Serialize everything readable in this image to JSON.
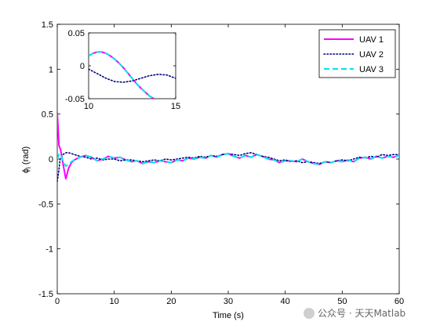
{
  "chart_data": {
    "type": "line",
    "title": "",
    "xlabel": "Time (s)",
    "ylabel": "ϕ_i (rad)",
    "ylabel_base": "ϕ",
    "ylabel_sub": "i",
    "ylabel_unit": " (rad)",
    "xlim": [
      0,
      60
    ],
    "ylim": [
      -1.5,
      1.5
    ],
    "xticks": [
      0,
      10,
      20,
      30,
      40,
      50,
      60
    ],
    "yticks": [
      -1.5,
      -1,
      -0.5,
      0,
      0.5,
      1,
      1.5
    ],
    "xtick_labels": [
      "0",
      "10",
      "20",
      "30",
      "40",
      "50",
      "60"
    ],
    "ytick_labels": [
      "-1.5",
      "-1",
      "-0.5",
      "0",
      "0.5",
      "1",
      "1.5"
    ],
    "grid": false,
    "legend_position": "top-right",
    "series": [
      {
        "name": "UAV 1",
        "color": "#ff00ff",
        "style": "solid",
        "x": [
          0,
          0.3,
          0.6,
          1,
          1.5,
          2,
          2.5,
          3,
          4,
          5,
          6,
          7,
          8,
          9,
          10,
          11,
          12,
          13,
          14,
          15,
          16,
          17,
          18,
          19,
          20,
          21,
          22,
          23,
          24,
          25,
          26,
          27,
          28,
          29,
          30,
          31,
          32,
          33,
          34,
          35,
          36,
          37,
          38,
          39,
          40,
          41,
          42,
          43,
          44,
          45,
          46,
          47,
          48,
          49,
          50,
          51,
          52,
          53,
          54,
          55,
          56,
          57,
          58,
          59,
          60
        ],
        "y": [
          0.52,
          0.15,
          0.1,
          -0.05,
          -0.22,
          -0.1,
          -0.04,
          -0.01,
          0.02,
          0.04,
          0.02,
          -0.02,
          0.0,
          0.03,
          0.01,
          0.02,
          -0.01,
          -0.03,
          -0.02,
          -0.05,
          -0.03,
          -0.04,
          -0.02,
          -0.03,
          -0.04,
          -0.01,
          -0.02,
          0.01,
          0.0,
          0.02,
          0.01,
          0.04,
          0.02,
          0.05,
          0.06,
          0.03,
          0.01,
          0.04,
          0.02,
          0.05,
          0.03,
          0.0,
          -0.01,
          -0.04,
          -0.02,
          -0.02,
          -0.03,
          0.0,
          -0.03,
          -0.05,
          -0.06,
          -0.03,
          -0.04,
          -0.02,
          -0.03,
          -0.01,
          -0.03,
          0.01,
          0.02,
          0.0,
          0.03,
          0.01,
          0.03,
          0.02,
          0.04
        ]
      },
      {
        "name": "UAV 2",
        "color": "#00007f",
        "style": "dotted",
        "x": [
          0,
          0.3,
          0.5,
          1,
          1.5,
          2,
          3,
          4,
          5,
          6,
          7,
          8,
          9,
          10,
          11,
          12,
          13,
          14,
          15,
          16,
          17,
          18,
          19,
          20,
          21,
          22,
          23,
          24,
          25,
          26,
          27,
          28,
          29,
          30,
          31,
          32,
          33,
          34,
          35,
          36,
          37,
          38,
          39,
          40,
          41,
          42,
          43,
          44,
          45,
          46,
          47,
          48,
          49,
          50,
          51,
          52,
          53,
          54,
          55,
          56,
          57,
          58,
          59,
          60
        ],
        "y": [
          -0.25,
          -0.12,
          0.0,
          0.05,
          0.07,
          0.07,
          0.05,
          0.03,
          0.02,
          0.0,
          0.01,
          -0.01,
          0.0,
          0.0,
          -0.02,
          -0.01,
          -0.01,
          -0.02,
          -0.03,
          -0.02,
          -0.01,
          -0.02,
          0.0,
          -0.01,
          0.0,
          0.01,
          0.02,
          0.01,
          0.03,
          0.02,
          0.04,
          0.03,
          0.05,
          0.06,
          0.05,
          0.04,
          0.06,
          0.07,
          0.05,
          0.03,
          0.02,
          0.0,
          -0.02,
          -0.01,
          -0.03,
          -0.02,
          -0.04,
          -0.03,
          -0.04,
          -0.05,
          -0.03,
          -0.04,
          -0.02,
          -0.01,
          -0.02,
          0.0,
          0.02,
          0.01,
          0.03,
          0.02,
          0.05,
          0.04,
          0.05,
          0.05
        ]
      },
      {
        "name": "UAV 3",
        "color": "#00e5ee",
        "style": "dashed",
        "x": [
          0,
          0.3,
          0.6,
          1,
          1.5,
          2,
          2.5,
          3,
          4,
          5,
          6,
          7,
          8,
          9,
          10,
          11,
          12,
          13,
          14,
          15,
          16,
          17,
          18,
          19,
          20,
          21,
          22,
          23,
          24,
          25,
          26,
          27,
          28,
          29,
          30,
          31,
          32,
          33,
          34,
          35,
          36,
          37,
          38,
          39,
          40,
          41,
          42,
          43,
          44,
          45,
          46,
          47,
          48,
          49,
          50,
          51,
          52,
          53,
          54,
          55,
          56,
          57,
          58,
          59,
          60
        ],
        "y": [
          0.0,
          0.05,
          0.06,
          -0.02,
          -0.08,
          -0.06,
          -0.03,
          -0.01,
          0.02,
          0.04,
          0.02,
          -0.02,
          0.0,
          0.03,
          0.01,
          0.02,
          -0.01,
          -0.03,
          -0.02,
          -0.05,
          -0.03,
          -0.04,
          -0.02,
          -0.03,
          -0.04,
          -0.01,
          -0.02,
          0.01,
          0.0,
          0.02,
          0.01,
          0.04,
          0.02,
          0.05,
          0.06,
          0.03,
          0.01,
          0.04,
          0.02,
          0.05,
          0.03,
          0.0,
          -0.01,
          -0.04,
          -0.02,
          -0.02,
          -0.03,
          0.0,
          -0.03,
          -0.05,
          -0.06,
          -0.03,
          -0.04,
          -0.02,
          -0.03,
          -0.01,
          -0.03,
          0.01,
          0.02,
          0.0,
          0.03,
          0.01,
          0.03,
          0.02,
          0.04
        ]
      }
    ],
    "inset": {
      "xlim": [
        10,
        15
      ],
      "ylim": [
        -0.05,
        0.05
      ],
      "xticks": [
        10,
        15
      ],
      "yticks": [
        -0.05,
        0,
        0.05
      ],
      "xtick_labels": [
        "10",
        "15"
      ],
      "ytick_labels": [
        "-0.05",
        "0",
        "0.05"
      ],
      "series": [
        {
          "name": "UAV 1",
          "x": [
            10,
            10.25,
            10.5,
            10.75,
            11,
            11.25,
            11.5,
            11.75,
            12,
            12.25,
            12.5,
            12.75,
            13,
            13.25,
            13.5,
            13.75
          ],
          "y": [
            0.015,
            0.019,
            0.021,
            0.021,
            0.019,
            0.015,
            0.01,
            0.004,
            -0.003,
            -0.011,
            -0.019,
            -0.027,
            -0.034,
            -0.04,
            -0.046,
            -0.05
          ]
        },
        {
          "name": "UAV 2",
          "x": [
            10,
            10.5,
            11,
            11.5,
            12,
            12.5,
            13,
            13.5,
            14,
            14.5,
            15
          ],
          "y": [
            -0.005,
            -0.012,
            -0.019,
            -0.024,
            -0.025,
            -0.023,
            -0.019,
            -0.015,
            -0.013,
            -0.014,
            -0.019
          ]
        },
        {
          "name": "UAV 3",
          "x": [
            10,
            10.25,
            10.5,
            10.75,
            11,
            11.25,
            11.5,
            11.75,
            12,
            12.25,
            12.5,
            12.75,
            13,
            13.25,
            13.5,
            13.75
          ],
          "y": [
            0.015,
            0.019,
            0.021,
            0.021,
            0.019,
            0.015,
            0.01,
            0.004,
            -0.003,
            -0.011,
            -0.019,
            -0.027,
            -0.034,
            -0.04,
            -0.046,
            -0.05
          ]
        }
      ]
    }
  },
  "watermark": {
    "text": "公众号 · 天天Matlab"
  }
}
